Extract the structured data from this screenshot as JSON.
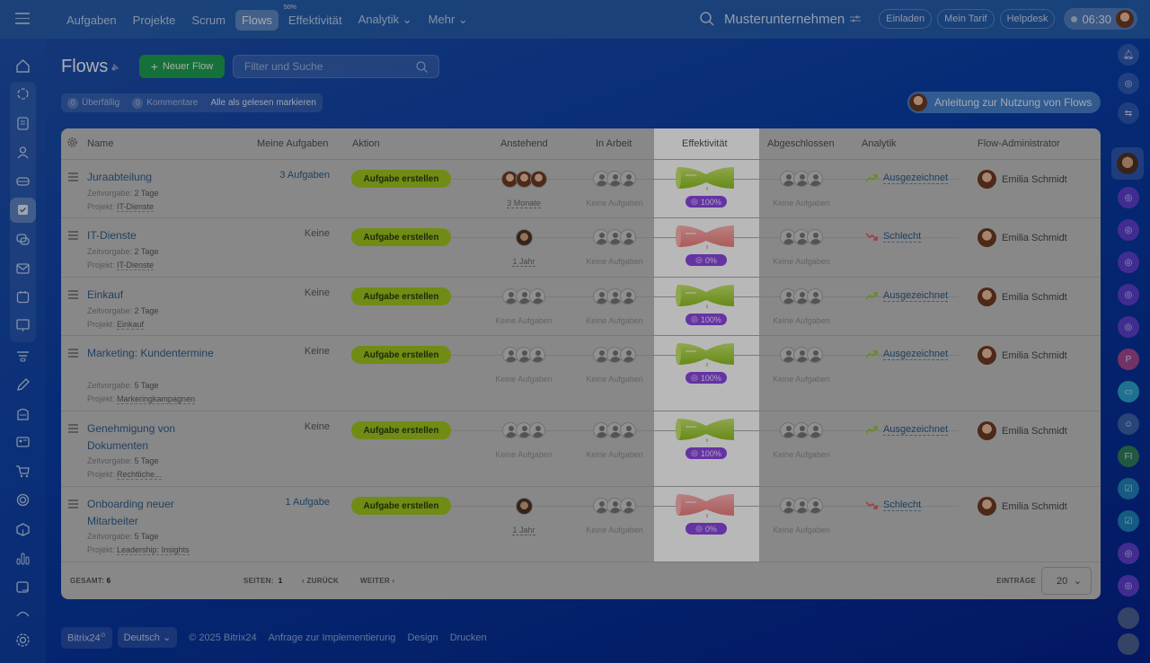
{
  "topnav": {
    "items": [
      {
        "label": "Aufgaben"
      },
      {
        "label": "Projekte"
      },
      {
        "label": "Scrum"
      },
      {
        "label": "Flows",
        "active": true
      },
      {
        "label": "Effektivität",
        "badge": "50%"
      },
      {
        "label": "Analytik ⌄"
      },
      {
        "label": "Mehr ⌄"
      }
    ],
    "company": "Musterunternehmen",
    "buttons": [
      "Einladen",
      "Mein Tarif",
      "Helpdesk"
    ],
    "clock": "06:30"
  },
  "page": {
    "title": "Flows",
    "new_flow": "Neuer Flow",
    "search_placeholder": "Filter und Suche",
    "counters": {
      "overdue_count": "0",
      "overdue_label": "Überfällig",
      "comments_count": "0",
      "comments_label": "Kommentare",
      "mark_read": "Alle als gelesen markieren"
    },
    "guide": "Anleitung zur Nutzung von Flows"
  },
  "table": {
    "headers": {
      "name": "Name",
      "my_tasks": "Meine Aufgaben",
      "action": "Aktion",
      "pending": "Anstehend",
      "in_progress": "In Arbeit",
      "efficiency": "Effektivität",
      "completed": "Abgeschlossen",
      "analytics": "Analytik",
      "admin": "Flow-Administrator"
    },
    "labels": {
      "time_label": "Zeitvorgabe:",
      "project_label": "Projekt:",
      "action_btn": "Aufgabe erstellen",
      "no_tasks": "Keine Aufgaben"
    },
    "rows": [
      {
        "name": "Juraabteilung",
        "time": "2 Tage",
        "project": "IT-Dienste",
        "my_tasks": "3 Aufgaben",
        "pending": "3 Monate",
        "pending_avatars": 3,
        "efficiency": "100%",
        "eff_good": true,
        "analytics": "Ausgezeichnet",
        "admin": "Emilia Schmidt"
      },
      {
        "name": "IT-Dienste",
        "time": "2 Tage",
        "project": "IT-Dienste",
        "my_tasks": "Keine",
        "pending": "1 Jahr",
        "pending_avatars": 1,
        "efficiency": "0%",
        "eff_good": false,
        "analytics": "Schlecht",
        "admin": "Emilia Schmidt"
      },
      {
        "name": "Einkauf",
        "time": "2 Tage",
        "project": "Einkauf",
        "my_tasks": "Keine",
        "pending": "Keine Aufgaben",
        "pending_avatars": 0,
        "efficiency": "100%",
        "eff_good": true,
        "analytics": "Ausgezeichnet",
        "admin": "Emilia Schmidt"
      },
      {
        "name": "Marketing: Kundentermine",
        "time": "5 Tage",
        "project": "Markeringkampagnen",
        "my_tasks": "Keine",
        "pending": "Keine Aufgaben",
        "pending_avatars": 0,
        "efficiency": "100%",
        "eff_good": true,
        "analytics": "Ausgezeichnet",
        "admin": "Emilia Schmidt"
      },
      {
        "name": "Genehmigung von Dokumenten",
        "time": "5 Tage",
        "project": "Rechtliche...",
        "my_tasks": "Keine",
        "pending": "Keine Aufgaben",
        "pending_avatars": 0,
        "efficiency": "100%",
        "eff_good": true,
        "analytics": "Ausgezeichnet",
        "admin": "Emilia Schmidt"
      },
      {
        "name": "Onboarding neuer Mitarbeiter",
        "time": "5 Tage",
        "project": "Leadership: Insights",
        "my_tasks": "1 Aufgabe",
        "pending": "1 Jahr",
        "pending_avatars": 1,
        "efficiency": "0%",
        "eff_good": false,
        "analytics": "Schlecht",
        "admin": "Emilia Schmidt"
      }
    ],
    "footer": {
      "total_label": "GESAMT:",
      "total": "6",
      "pages_label": "SEITEN:",
      "page": "1",
      "prev": "ZURÜCK",
      "next": "WEITER",
      "entries_label": "EINTRÄGE",
      "entries": "20"
    }
  },
  "right_sidebar": {
    "p_initial": "P",
    "fi_initials": "FI"
  },
  "bottom": {
    "brand": "Bitrix24",
    "language": "Deutsch",
    "copyright": "© 2025 Bitrix24",
    "links": [
      "Anfrage zur Implementierung",
      "Design",
      "Drucken"
    ]
  },
  "colors": {
    "accent_green": "#9bc21c",
    "efficiency_purple": "#8c47e3",
    "good": "#8fbf22",
    "bad": "#e35050"
  }
}
